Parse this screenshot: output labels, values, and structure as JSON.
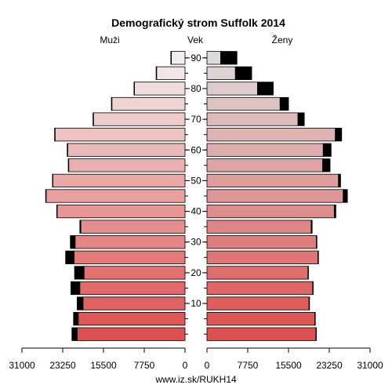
{
  "chart_data": {
    "type": "population-pyramid",
    "title": "Demografický strom Suffolk 2014",
    "left_label": "Muži",
    "center_label": "Vek",
    "right_label": "Ženy",
    "footer": "www.iz.sk/RUKH14",
    "x_ticks_left": [
      "31000",
      "23250",
      "15500",
      "7750",
      "0"
    ],
    "x_ticks_right": [
      "0",
      "7750",
      "15500",
      "23250",
      "31000"
    ],
    "x_tick_values": [
      31000,
      23250,
      15500,
      7750,
      0
    ],
    "xlim": [
      0,
      31000
    ],
    "age_ticks": [
      "10",
      "20",
      "30",
      "40",
      "50",
      "60",
      "70",
      "80",
      "90"
    ],
    "age_groups": [
      "0-4",
      "5-9",
      "10-14",
      "15-19",
      "20-24",
      "25-29",
      "30-34",
      "35-39",
      "40-44",
      "45-49",
      "50-54",
      "55-59",
      "60-64",
      "65-69",
      "70-74",
      "75-79",
      "80-84",
      "85-89",
      "90+"
    ],
    "series": [
      {
        "name": "Muži",
        "base": [
          20500,
          20300,
          19400,
          20000,
          19200,
          21100,
          20900,
          19800,
          24300,
          26400,
          25100,
          22100,
          22300,
          24700,
          17400,
          13900,
          9600,
          5400,
          2600
        ],
        "extra": [
          1000,
          900,
          1100,
          1700,
          1800,
          1600,
          900,
          200,
          100,
          100,
          100,
          100,
          100,
          100,
          100,
          100,
          100,
          100,
          100
        ]
      },
      {
        "name": "Ženy",
        "base": [
          20700,
          20500,
          19400,
          20100,
          19200,
          21100,
          20800,
          19800,
          24200,
          25900,
          25000,
          22000,
          22100,
          24400,
          17300,
          13900,
          9600,
          5400,
          2600
        ],
        "extra": [
          100,
          100,
          100,
          100,
          100,
          100,
          100,
          200,
          300,
          800,
          400,
          1400,
          1500,
          1200,
          1200,
          1600,
          3000,
          3100,
          3100
        ]
      }
    ],
    "colors": {
      "extra": "#000000",
      "outline": "#000000",
      "male_young": "#de4f4f",
      "male_old": "#f2eeee",
      "female_young": "#de4f4f",
      "female_old": "#dedada"
    }
  }
}
